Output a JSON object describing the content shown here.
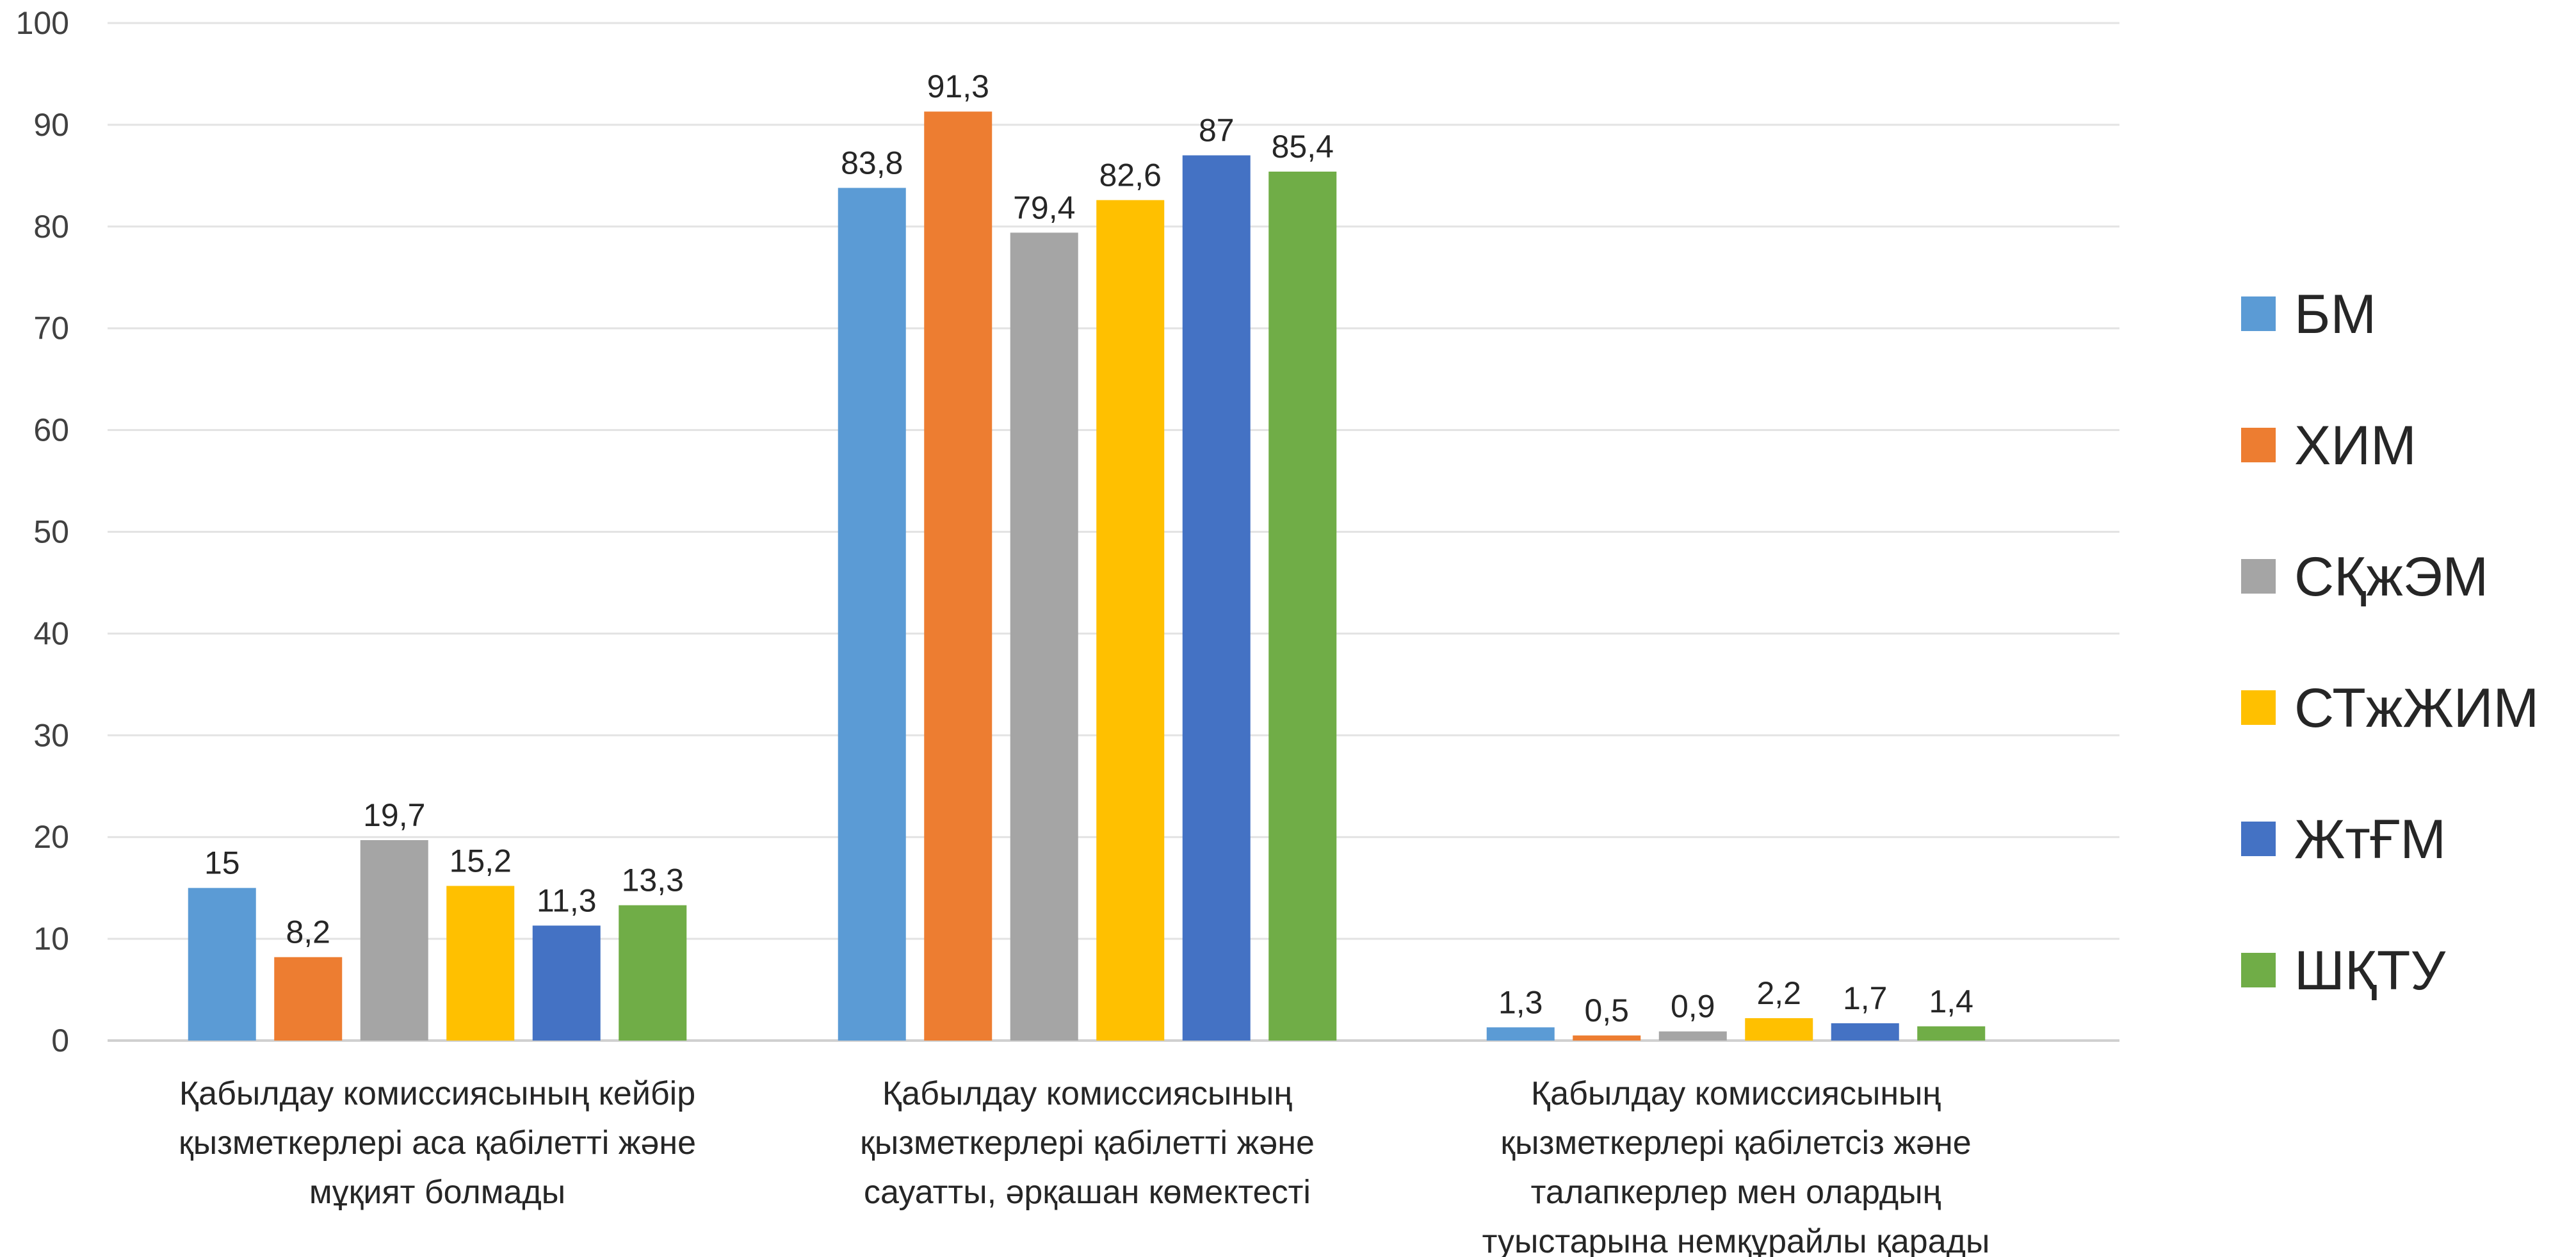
{
  "chart_data": {
    "type": "bar",
    "title": "",
    "xlabel": "",
    "ylabel": "",
    "ylim": [
      0,
      100
    ],
    "yticks": [
      0,
      10,
      20,
      30,
      40,
      50,
      60,
      70,
      80,
      90,
      100
    ],
    "grid": true,
    "legend_position": "right",
    "categories": [
      [
        "Қабылдау комиссиясының кейбір",
        "қызметкерлері аса қабілетті және",
        "мұқият болмады"
      ],
      [
        "Қабылдау комиссиясының",
        "қызметкерлері қабілетті және",
        "сауатты, әрқашан көмектесті"
      ],
      [
        "Қабылдау комиссиясының",
        "қызметкерлері қабілетсіз және",
        "талапкерлер мен олардың",
        "туыстарына немқұрайлы қарады"
      ]
    ],
    "series": [
      {
        "name": "БМ",
        "color": "#5B9BD5",
        "values": [
          15,
          83.8,
          1.3
        ],
        "labels": [
          "15",
          "83,8",
          "1,3"
        ]
      },
      {
        "name": "ХИМ",
        "color": "#ED7D31",
        "values": [
          8.2,
          91.3,
          0.5
        ],
        "labels": [
          "8,2",
          "91,3",
          "0,5"
        ]
      },
      {
        "name": "СҚжЭМ",
        "color": "#A5A5A5",
        "values": [
          19.7,
          79.4,
          0.9
        ],
        "labels": [
          "19,7",
          "79,4",
          "0,9"
        ]
      },
      {
        "name": "СТжЖИМ",
        "color": "#FFC000",
        "values": [
          15.2,
          82.6,
          2.2
        ],
        "labels": [
          "15,2",
          "82,6",
          "2,2"
        ]
      },
      {
        "name": "ЖтҒМ",
        "color": "#4472C4",
        "values": [
          11.3,
          87,
          1.7
        ],
        "labels": [
          "11,3",
          "87",
          "1,7"
        ]
      },
      {
        "name": "ШҚТУ",
        "color": "#70AD47",
        "values": [
          13.3,
          85.4,
          1.4
        ],
        "labels": [
          "13,3",
          "85,4",
          "1,4"
        ]
      }
    ]
  }
}
